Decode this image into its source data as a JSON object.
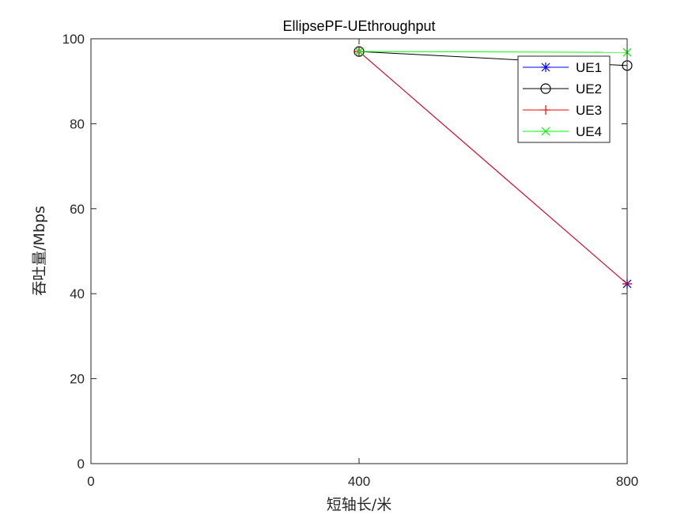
{
  "chart_data": {
    "type": "line",
    "title": "EllipsePF-UEthroughput",
    "xlabel": "短轴长/米",
    "ylabel": "吞吐量/Mbps",
    "xlim": [
      0,
      800
    ],
    "ylim": [
      0,
      100
    ],
    "x_ticks": [
      "0",
      "400",
      "800"
    ],
    "y_ticks": [
      "0",
      "20",
      "40",
      "60",
      "80",
      "100"
    ],
    "x": [
      400,
      800
    ],
    "series": [
      {
        "name": "UE1",
        "values": [
          97.0,
          42.3
        ],
        "color": "#0000ff",
        "marker": "asterisk"
      },
      {
        "name": "UE2",
        "values": [
          97.0,
          93.7
        ],
        "color": "#000000",
        "marker": "circle"
      },
      {
        "name": "UE3",
        "values": [
          97.0,
          42.3
        ],
        "color": "#ff0000",
        "marker": "plus"
      },
      {
        "name": "UE4",
        "values": [
          97.0,
          96.8
        ],
        "color": "#00ff00",
        "marker": "x"
      }
    ],
    "grid": false,
    "legend_position": "top-right"
  }
}
